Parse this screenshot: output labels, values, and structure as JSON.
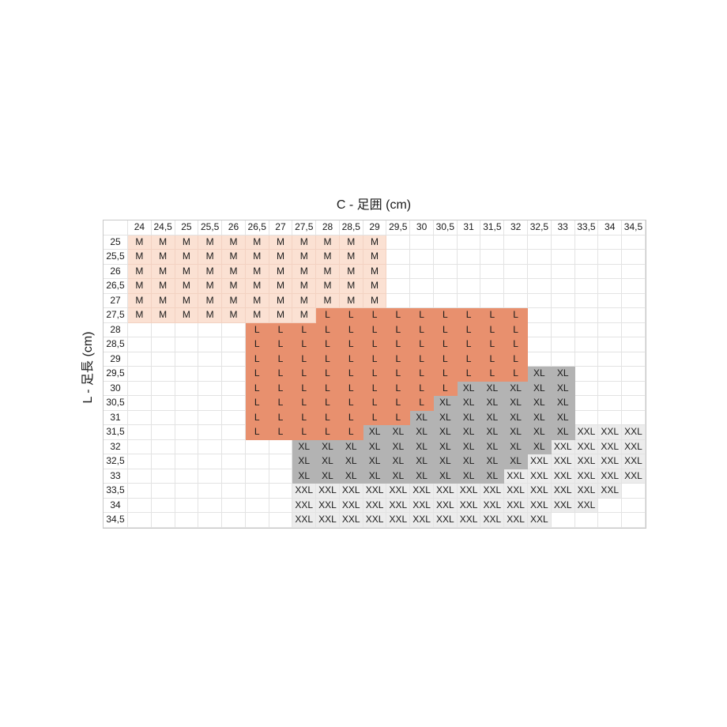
{
  "x_axis_title": "C - 足囲 (cm)",
  "y_axis_title": "L - 足長 (cm)",
  "columns": [
    "24",
    "24,5",
    "25",
    "25,5",
    "26",
    "26,5",
    "27",
    "27,5",
    "28",
    "28,5",
    "29",
    "29,5",
    "30",
    "30,5",
    "31",
    "31,5",
    "32",
    "32,5",
    "33",
    "33,5",
    "34",
    "34,5"
  ],
  "rows": [
    "25",
    "25,5",
    "26",
    "26,5",
    "27",
    "27,5",
    "28",
    "28,5",
    "29",
    "29,5",
    "30",
    "30,5",
    "31",
    "31,5",
    "32",
    "32,5",
    "33",
    "33,5",
    "34",
    "34,5"
  ],
  "cells": [
    [
      "M",
      "M",
      "M",
      "M",
      "M",
      "M",
      "M",
      "M",
      "M",
      "M",
      "M",
      "",
      "",
      "",
      "",
      "",
      "",
      "",
      "",
      "",
      "",
      ""
    ],
    [
      "M",
      "M",
      "M",
      "M",
      "M",
      "M",
      "M",
      "M",
      "M",
      "M",
      "M",
      "",
      "",
      "",
      "",
      "",
      "",
      "",
      "",
      "",
      "",
      ""
    ],
    [
      "M",
      "M",
      "M",
      "M",
      "M",
      "M",
      "M",
      "M",
      "M",
      "M",
      "M",
      "",
      "",
      "",
      "",
      "",
      "",
      "",
      "",
      "",
      "",
      ""
    ],
    [
      "M",
      "M",
      "M",
      "M",
      "M",
      "M",
      "M",
      "M",
      "M",
      "M",
      "M",
      "",
      "",
      "",
      "",
      "",
      "",
      "",
      "",
      "",
      "",
      ""
    ],
    [
      "M",
      "M",
      "M",
      "M",
      "M",
      "M",
      "M",
      "M",
      "M",
      "M",
      "M",
      "",
      "",
      "",
      "",
      "",
      "",
      "",
      "",
      "",
      "",
      ""
    ],
    [
      "M",
      "M",
      "M",
      "M",
      "M",
      "M",
      "M",
      "M",
      "L",
      "L",
      "L",
      "L",
      "L",
      "L",
      "L",
      "L",
      "L",
      "",
      "",
      "",
      "",
      ""
    ],
    [
      "",
      "",
      "",
      "",
      "",
      "L",
      "L",
      "L",
      "L",
      "L",
      "L",
      "L",
      "L",
      "L",
      "L",
      "L",
      "L",
      "",
      "",
      "",
      "",
      ""
    ],
    [
      "",
      "",
      "",
      "",
      "",
      "L",
      "L",
      "L",
      "L",
      "L",
      "L",
      "L",
      "L",
      "L",
      "L",
      "L",
      "L",
      "",
      "",
      "",
      "",
      ""
    ],
    [
      "",
      "",
      "",
      "",
      "",
      "L",
      "L",
      "L",
      "L",
      "L",
      "L",
      "L",
      "L",
      "L",
      "L",
      "L",
      "L",
      "",
      "",
      "",
      "",
      ""
    ],
    [
      "",
      "",
      "",
      "",
      "",
      "L",
      "L",
      "L",
      "L",
      "L",
      "L",
      "L",
      "L",
      "L",
      "L",
      "L",
      "L",
      "XL",
      "XL",
      "",
      "",
      ""
    ],
    [
      "",
      "",
      "",
      "",
      "",
      "L",
      "L",
      "L",
      "L",
      "L",
      "L",
      "L",
      "L",
      "L",
      "XL",
      "XL",
      "XL",
      "XL",
      "XL",
      "",
      "",
      ""
    ],
    [
      "",
      "",
      "",
      "",
      "",
      "L",
      "L",
      "L",
      "L",
      "L",
      "L",
      "L",
      "L",
      "XL",
      "XL",
      "XL",
      "XL",
      "XL",
      "XL",
      "",
      "",
      ""
    ],
    [
      "",
      "",
      "",
      "",
      "",
      "L",
      "L",
      "L",
      "L",
      "L",
      "L",
      "L",
      "XL",
      "XL",
      "XL",
      "XL",
      "XL",
      "XL",
      "XL",
      "",
      "",
      ""
    ],
    [
      "",
      "",
      "",
      "",
      "",
      "L",
      "L",
      "L",
      "L",
      "L",
      "XL",
      "XL",
      "XL",
      "XL",
      "XL",
      "XL",
      "XL",
      "XL",
      "XL",
      "XXL",
      "XXL",
      "XXL"
    ],
    [
      "",
      "",
      "",
      "",
      "",
      "",
      "",
      "XL",
      "XL",
      "XL",
      "XL",
      "XL",
      "XL",
      "XL",
      "XL",
      "XL",
      "XL",
      "XL",
      "XXL",
      "XXL",
      "XXL",
      "XXL"
    ],
    [
      "",
      "",
      "",
      "",
      "",
      "",
      "",
      "XL",
      "XL",
      "XL",
      "XL",
      "XL",
      "XL",
      "XL",
      "XL",
      "XL",
      "XL",
      "XXL",
      "XXL",
      "XXL",
      "XXL",
      "XXL"
    ],
    [
      "",
      "",
      "",
      "",
      "",
      "",
      "",
      "XL",
      "XL",
      "XL",
      "XL",
      "XL",
      "XL",
      "XL",
      "XL",
      "XL",
      "XXL",
      "XXL",
      "XXL",
      "XXL",
      "XXL",
      "XXL"
    ],
    [
      "",
      "",
      "",
      "",
      "",
      "",
      "",
      "XXL",
      "XXL",
      "XXL",
      "XXL",
      "XXL",
      "XXL",
      "XXL",
      "XXL",
      "XXL",
      "XXL",
      "XXL",
      "XXL",
      "XXL",
      "XXL",
      ""
    ],
    [
      "",
      "",
      "",
      "",
      "",
      "",
      "",
      "XXL",
      "XXL",
      "XXL",
      "XXL",
      "XXL",
      "XXL",
      "XXL",
      "XXL",
      "XXL",
      "XXL",
      "XXL",
      "XXL",
      "XXL",
      "",
      ""
    ],
    [
      "",
      "",
      "",
      "",
      "",
      "",
      "",
      "XXL",
      "XXL",
      "XXL",
      "XXL",
      "XXL",
      "XXL",
      "XXL",
      "XXL",
      "XXL",
      "XXL",
      "XXL",
      "",
      "",
      "",
      ""
    ]
  ],
  "colors": {
    "M": "#fbe1d3",
    "L": "#e8906e",
    "XL": "#b3b3b3",
    "XXL": "#ececec"
  }
}
